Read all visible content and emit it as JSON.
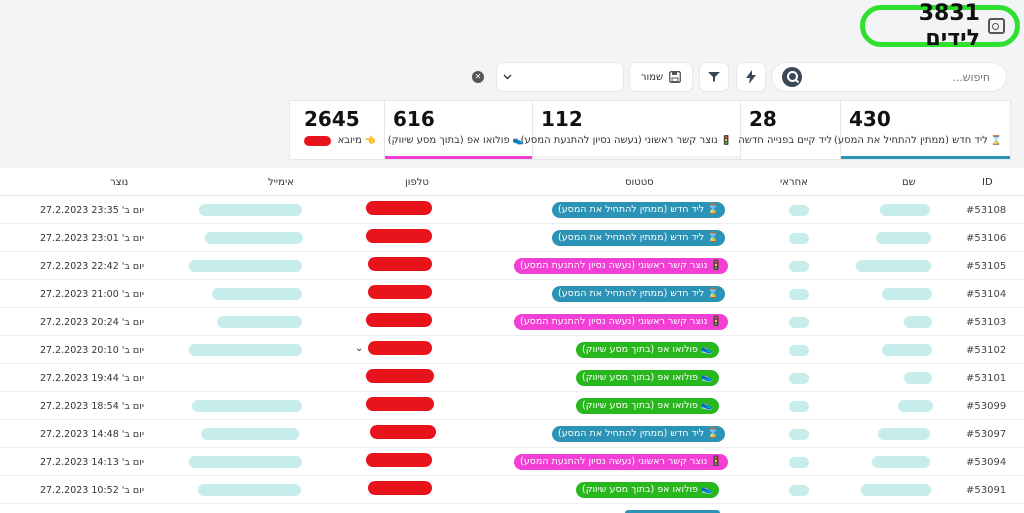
{
  "title": {
    "text": "3831 לידים",
    "icon": "contact-card-icon"
  },
  "search": {
    "placeholder": "חיפוש...",
    "icon": "search-icon"
  },
  "toolbar": {
    "save_label": "שמור",
    "bolt_icon": "bolt-icon",
    "filter_icon": "filter-icon",
    "save_icon": "save-icon",
    "clear_icon": "clear-icon",
    "select_value": ""
  },
  "stats": [
    {
      "number": "430",
      "label": "ליד חדש (ממתין להתחיל את המסע)",
      "icon": "⌛",
      "bar_color": "#2a93b6"
    },
    {
      "number": "28",
      "label": "ליד קיים בפנייה חדשה",
      "icon": "",
      "bar_color": ""
    },
    {
      "number": "112",
      "label": "נוצר קשר ראשוני (נעשה נסיון להתנעת המסע)",
      "icon": "🚦",
      "bar_color": "#f2f4f7"
    },
    {
      "number": "616",
      "label": "פולואו אפ (בתוך מסע שיווק)",
      "icon": "👟",
      "bar_color": "#ef3cd1"
    },
    {
      "number": "2645",
      "label": "מיובא",
      "icon": "👈",
      "bar_color": ""
    }
  ],
  "colors": {
    "new": "#2a93b6",
    "contact": "#f23fd6",
    "follow": "#28b81e"
  },
  "table": {
    "headers": {
      "id": "ID",
      "name": "שם",
      "resp": "אחראי",
      "status": "סטטוס",
      "phone": "טלפון",
      "email": "אימייל",
      "created": "נוצר"
    },
    "rows": [
      {
        "id": "#53108",
        "status": "⌛ ליד חדש (ממתין להתחיל את המסע)",
        "type": "new",
        "date": "יום ב' 23:35 27.2.2023"
      },
      {
        "id": "#53106",
        "status": "⌛ ליד חדש (ממתין להתחיל את המסע)",
        "type": "new",
        "date": "יום ב' 23:01 27.2.2023"
      },
      {
        "id": "#53105",
        "status": "🚦 נוצר קשר ראשוני (נעשה נסיון להתנעת המסע)",
        "type": "contact",
        "date": "יום ב' 22:42 27.2.2023"
      },
      {
        "id": "#53104",
        "status": "⌛ ליד חדש (ממתין להתחיל את המסע)",
        "type": "new",
        "date": "יום ב' 21:00 27.2.2023"
      },
      {
        "id": "#53103",
        "status": "🚦 נוצר קשר ראשוני (נעשה נסיון להתנעת המסע)",
        "type": "contact",
        "date": "יום ב' 20:24 27.2.2023"
      },
      {
        "id": "#53102",
        "status": "👟 פולואו אפ (בתוך מסע שיווק)",
        "type": "follow",
        "date": "יום ב' 20:10 27.2.2023"
      },
      {
        "id": "#53101",
        "status": "👟 פולואו אפ (בתוך מסע שיווק)",
        "type": "follow",
        "date": "יום ב' 19:44 27.2.2023"
      },
      {
        "id": "#53099",
        "status": "👟 פולואו אפ (בתוך מסע שיווק)",
        "type": "follow",
        "date": "יום ב' 18:54 27.2.2023"
      },
      {
        "id": "#53097",
        "status": "⌛ ליד חדש (ממתין להתחיל את המסע)",
        "type": "new",
        "date": "יום ב' 14:48 27.2.2023"
      },
      {
        "id": "#53094",
        "status": "🚦 נוצר קשר ראשוני (נעשה נסיון להתנעת המסע)",
        "type": "contact",
        "date": "יום ב' 14:13 27.2.2023"
      },
      {
        "id": "#53091",
        "status": "👟 פולואו אפ (בתוך מסע שיווק)",
        "type": "follow",
        "date": "יום ב' 10:52 27.2.2023"
      }
    ]
  }
}
